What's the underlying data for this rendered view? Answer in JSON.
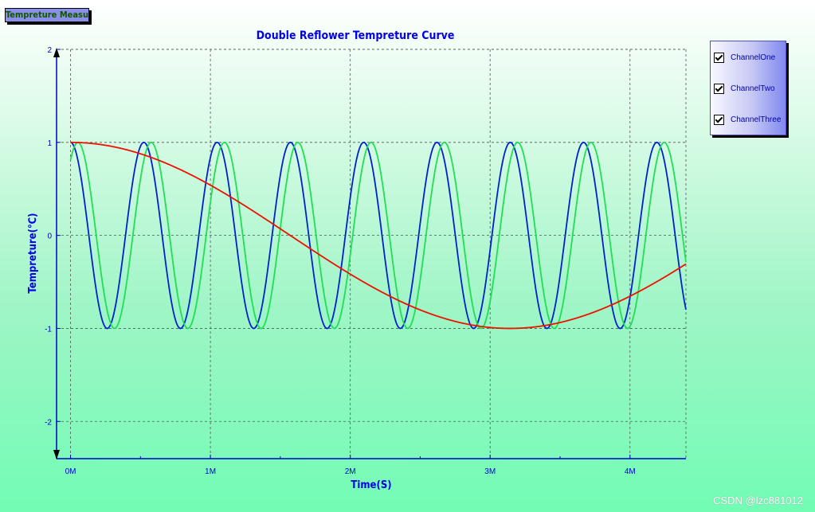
{
  "window": {
    "button_label": "Tempreture Measure"
  },
  "legend": {
    "items": [
      {
        "label": "ChannelOne",
        "checked": true
      },
      {
        "label": "ChannelTwo",
        "checked": true
      },
      {
        "label": "ChannelThree",
        "checked": true
      }
    ]
  },
  "watermark": "CSDN @lzc881012",
  "chart_data": {
    "type": "line",
    "title": "Double Reflower Tempreture Curve",
    "xlabel": "Time(S)",
    "ylabel": "Tempreture(℃)",
    "xlim": [
      -0.1,
      4.4
    ],
    "ylim": [
      -2.4,
      2
    ],
    "x_ticks": [
      0,
      1,
      2,
      3,
      4
    ],
    "x_tick_labels": [
      "0M",
      "1M",
      "2M",
      "3M",
      "4M"
    ],
    "y_ticks": [
      2,
      1,
      0,
      -1,
      -2
    ],
    "y_tick_labels": [
      "2",
      "1",
      "0",
      "-1",
      "-2"
    ],
    "grid": true,
    "series": [
      {
        "name": "ChannelOne",
        "color": "#0022cc",
        "x_start": 0,
        "x_end": 4.4,
        "period": 0.524,
        "phase": 0,
        "amplitude": 1
      },
      {
        "name": "ChannelTwo",
        "color": "#22dd55",
        "x_start": 0,
        "x_end": 4.4,
        "period": 0.524,
        "phase": -0.63,
        "amplitude": 1
      },
      {
        "name": "ChannelThree",
        "color": "#ee1100",
        "x_start": 0,
        "x_end": 4.4,
        "period": 6.283,
        "phase": 0,
        "amplitude": 1
      }
    ]
  }
}
